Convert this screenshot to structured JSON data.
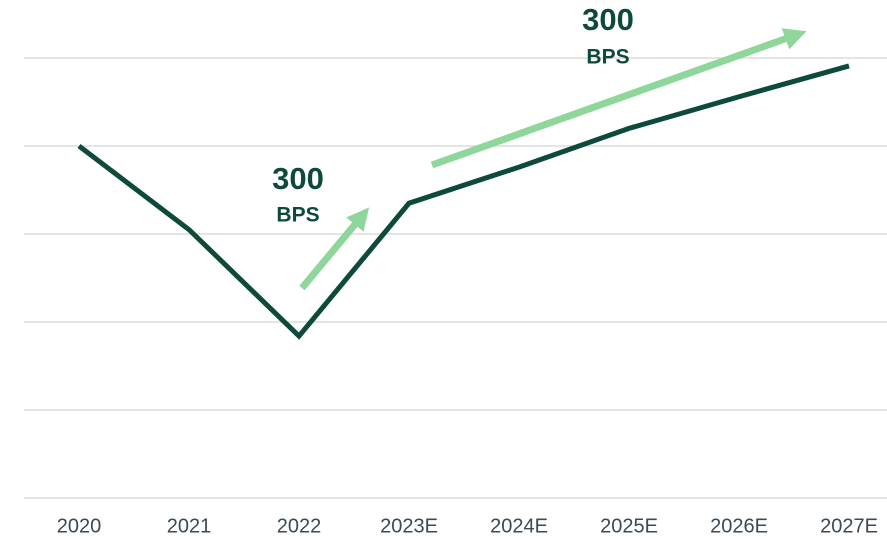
{
  "chart_data": {
    "type": "line",
    "categories": [
      "2020",
      "2021",
      "2022",
      "2023E",
      "2024E",
      "2025E",
      "2026E",
      "2027E"
    ],
    "series": [
      {
        "color": "#0d4a3c",
        "values": [
          4.0,
          3.05,
          1.84,
          3.35,
          3.76,
          4.2,
          4.56,
          4.91
        ]
      }
    ],
    "ylim": [
      0,
      5
    ],
    "yticks": [
      0,
      1,
      2,
      3,
      4,
      5
    ],
    "grid": true,
    "annotations": [
      {
        "value": "300",
        "unit": "BPS"
      },
      {
        "value": "300",
        "unit": "BPS"
      }
    ]
  }
}
